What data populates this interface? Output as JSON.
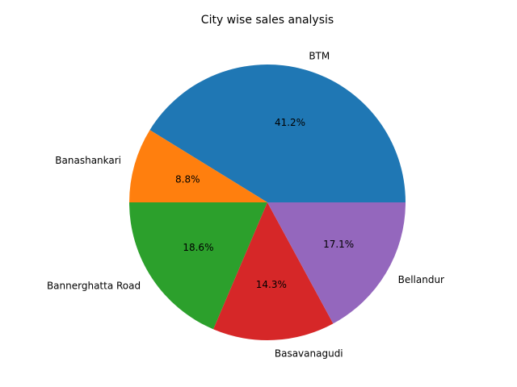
{
  "chart_data": {
    "type": "pie",
    "title": "City wise sales analysis",
    "categories": [
      "BTM",
      "Banashankari",
      "Bannerghatta Road",
      "Basavanagudi",
      "Bellandur"
    ],
    "values": [
      41.2,
      8.8,
      18.6,
      14.3,
      17.1
    ],
    "value_labels": [
      "41.2%",
      "8.8%",
      "18.6%",
      "14.3%",
      "17.1%"
    ],
    "colors": [
      "#1f77b4",
      "#ff7f0e",
      "#2ca02c",
      "#d62728",
      "#9467bd"
    ],
    "start_angle": "3 o'clock",
    "direction": "counterclockwise",
    "legend": "none"
  }
}
